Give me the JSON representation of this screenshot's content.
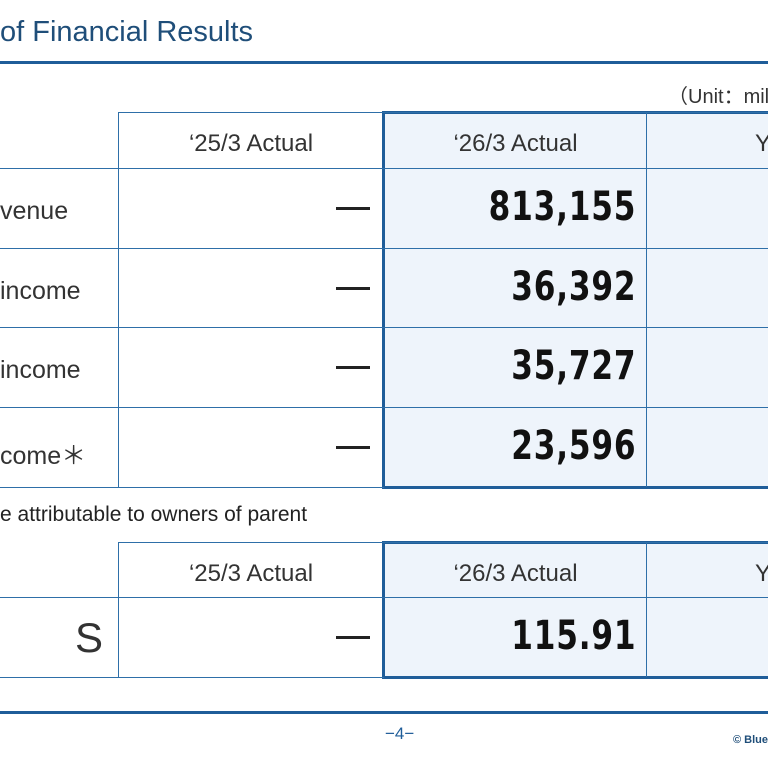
{
  "title": "of Financial Results",
  "unit": "（Unit：mil",
  "table1": {
    "headers": [
      "‘25/3 Actual",
      "‘26/3 Actual",
      "Y"
    ],
    "rows": [
      {
        "label": "venue",
        "prev": "—",
        "current": "813,155"
      },
      {
        "label": " income",
        "prev": "—",
        "current": "36,392"
      },
      {
        "label": "income",
        "prev": "—",
        "current": "35,727"
      },
      {
        "label": "come＊",
        "prev": "—",
        "current": "23,596"
      }
    ]
  },
  "note": "e attributable to owners of parent",
  "table2": {
    "headers": [
      "‘25/3 Actual",
      "‘26/3 Actual",
      "Y"
    ],
    "rows": [
      {
        "label": "S",
        "prev": "—",
        "current": "115.91"
      }
    ]
  },
  "footer": {
    "page": "−4−",
    "copyright": "© Blue"
  }
}
